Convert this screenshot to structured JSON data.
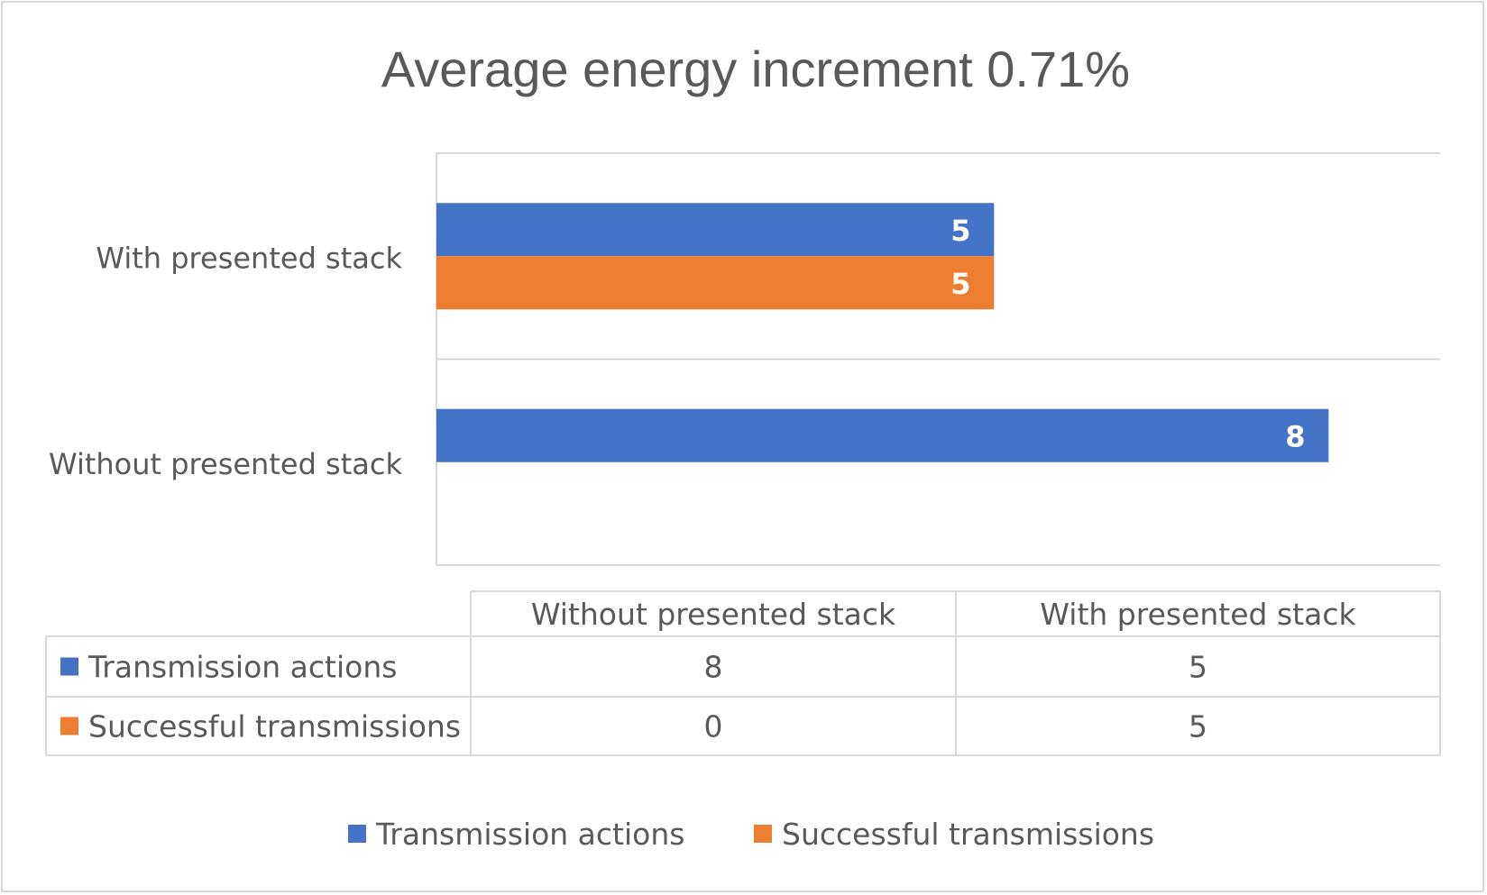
{
  "chart_data": {
    "type": "bar",
    "orientation": "horizontal",
    "title": "Average energy increment 0.71%",
    "categories": [
      "Without presented stack",
      "With presented stack"
    ],
    "series": [
      {
        "name": "Transmission actions",
        "values": [
          8,
          5
        ],
        "color": "#4472C4"
      },
      {
        "name": "Successful transmissions",
        "values": [
          0,
          5
        ],
        "color": "#ED7D31"
      }
    ],
    "xlim": [
      0,
      9
    ],
    "grid": true,
    "data_labels": true,
    "data_table": true,
    "legend": "bottom"
  }
}
